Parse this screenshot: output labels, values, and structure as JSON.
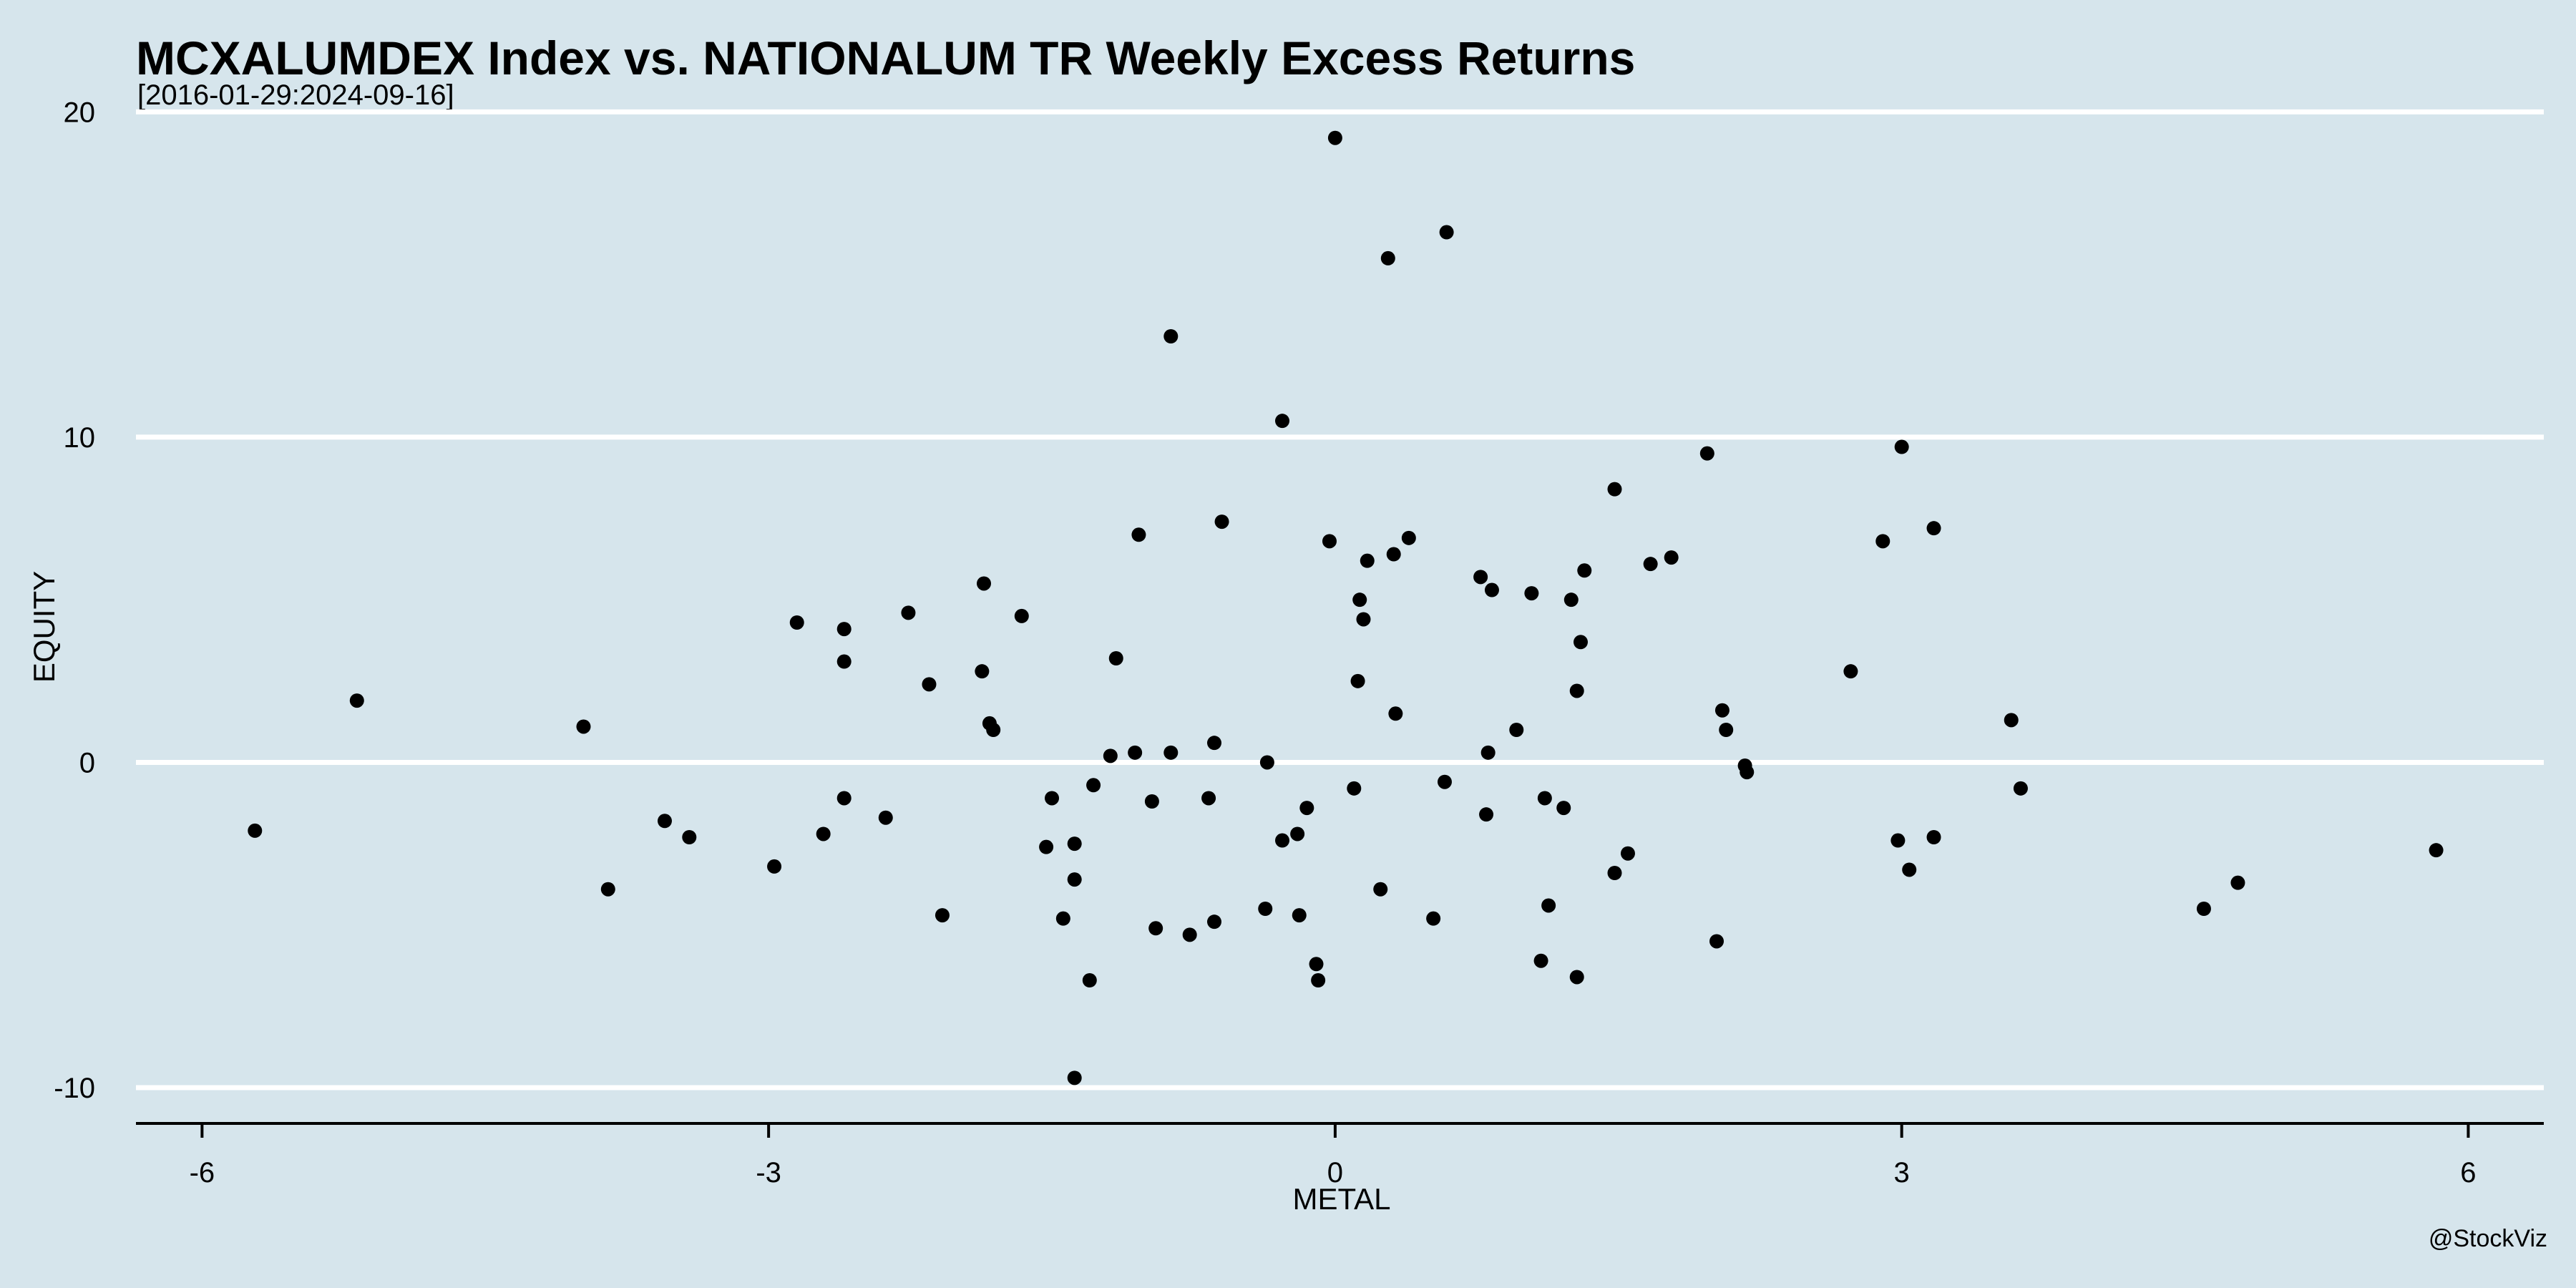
{
  "chart_data": {
    "type": "scatter",
    "title": "MCXALUMDEX Index vs. NATIONALUM TR Weekly Excess Returns",
    "subtitle": "[2016-01-29:2024-09-16]",
    "xlabel": "METAL",
    "ylabel": "EQUITY",
    "xlim": [
      -6.35,
      6.4
    ],
    "ylim": [
      -11.1,
      20.8
    ],
    "x_ticks": [
      -6,
      -3,
      0,
      3,
      6
    ],
    "x_tick_labels": [
      "-6",
      "-3",
      "0",
      "3",
      "6"
    ],
    "y_ticks": [
      -10,
      0,
      10,
      20
    ],
    "y_tick_labels": [
      "-10",
      "0",
      "10",
      "20"
    ],
    "grid": "horizontal",
    "credit": "@StockViz",
    "colors": {
      "background": "#d6e5ec",
      "gridline": "#ffffff",
      "point": "#000000",
      "axis": "#000000"
    },
    "points": [
      {
        "x": -5.72,
        "y": -2.1
      },
      {
        "x": -5.18,
        "y": 1.9
      },
      {
        "x": -3.98,
        "y": 1.1
      },
      {
        "x": -3.85,
        "y": -3.9
      },
      {
        "x": -3.55,
        "y": -1.8
      },
      {
        "x": -3.42,
        "y": -2.3
      },
      {
        "x": -2.97,
        "y": -3.2
      },
      {
        "x": -2.85,
        "y": 4.3
      },
      {
        "x": -2.71,
        "y": -2.2
      },
      {
        "x": -2.6,
        "y": 4.1
      },
      {
        "x": -2.6,
        "y": 3.1
      },
      {
        "x": -2.6,
        "y": -1.1
      },
      {
        "x": -2.38,
        "y": -1.7
      },
      {
        "x": -2.26,
        "y": 4.6
      },
      {
        "x": -2.15,
        "y": 2.4
      },
      {
        "x": -2.08,
        "y": -4.7
      },
      {
        "x": -1.86,
        "y": 5.5
      },
      {
        "x": -1.87,
        "y": 2.8
      },
      {
        "x": -1.83,
        "y": 1.2
      },
      {
        "x": -1.81,
        "y": 1.0
      },
      {
        "x": -1.66,
        "y": 4.5
      },
      {
        "x": -1.53,
        "y": -2.6
      },
      {
        "x": -1.5,
        "y": -1.1
      },
      {
        "x": -1.44,
        "y": -4.8
      },
      {
        "x": -1.38,
        "y": -2.5
      },
      {
        "x": -1.38,
        "y": -3.6
      },
      {
        "x": -1.38,
        "y": -9.7
      },
      {
        "x": -1.3,
        "y": -6.7
      },
      {
        "x": -1.28,
        "y": -0.7
      },
      {
        "x": -1.19,
        "y": 0.2
      },
      {
        "x": -1.16,
        "y": 3.2
      },
      {
        "x": -1.06,
        "y": 0.3
      },
      {
        "x": -1.04,
        "y": 7.0
      },
      {
        "x": -0.97,
        "y": -1.2
      },
      {
        "x": -0.95,
        "y": -5.1
      },
      {
        "x": -0.87,
        "y": 0.3
      },
      {
        "x": -0.87,
        "y": 13.1
      },
      {
        "x": -0.77,
        "y": -5.3
      },
      {
        "x": -0.67,
        "y": -1.1
      },
      {
        "x": -0.64,
        "y": 0.6
      },
      {
        "x": -0.64,
        "y": -4.9
      },
      {
        "x": -0.6,
        "y": 7.4
      },
      {
        "x": -0.37,
        "y": -4.5
      },
      {
        "x": -0.36,
        "y": 0.0
      },
      {
        "x": -0.28,
        "y": 10.5
      },
      {
        "x": -0.28,
        "y": -2.4
      },
      {
        "x": -0.2,
        "y": -2.2
      },
      {
        "x": -0.19,
        "y": -4.7
      },
      {
        "x": -0.15,
        "y": -1.4
      },
      {
        "x": -0.1,
        "y": -6.2
      },
      {
        "x": -0.09,
        "y": -6.7
      },
      {
        "x": -0.03,
        "y": 6.8
      },
      {
        "x": 0.0,
        "y": 19.2
      },
      {
        "x": 0.1,
        "y": -0.8
      },
      {
        "x": 0.12,
        "y": 2.5
      },
      {
        "x": 0.13,
        "y": 5.0
      },
      {
        "x": 0.15,
        "y": 4.4
      },
      {
        "x": 0.17,
        "y": 6.2
      },
      {
        "x": 0.24,
        "y": -3.9
      },
      {
        "x": 0.28,
        "y": 15.5
      },
      {
        "x": 0.31,
        "y": 6.4
      },
      {
        "x": 0.32,
        "y": 1.5
      },
      {
        "x": 0.39,
        "y": 6.9
      },
      {
        "x": 0.52,
        "y": -4.8
      },
      {
        "x": 0.59,
        "y": 16.3
      },
      {
        "x": 0.58,
        "y": -0.6
      },
      {
        "x": 0.77,
        "y": 5.7
      },
      {
        "x": 0.8,
        "y": -1.6
      },
      {
        "x": 0.81,
        "y": 0.3
      },
      {
        "x": 0.83,
        "y": 5.3
      },
      {
        "x": 0.96,
        "y": 1.0
      },
      {
        "x": 1.04,
        "y": 5.2
      },
      {
        "x": 1.09,
        "y": -6.1
      },
      {
        "x": 1.11,
        "y": -1.1
      },
      {
        "x": 1.13,
        "y": -4.4
      },
      {
        "x": 1.21,
        "y": -1.4
      },
      {
        "x": 1.25,
        "y": 5.0
      },
      {
        "x": 1.28,
        "y": 2.2
      },
      {
        "x": 1.28,
        "y": -6.6
      },
      {
        "x": 1.3,
        "y": 3.7
      },
      {
        "x": 1.32,
        "y": 5.9
      },
      {
        "x": 1.48,
        "y": 8.4
      },
      {
        "x": 1.48,
        "y": -3.4
      },
      {
        "x": 1.55,
        "y": -2.8
      },
      {
        "x": 1.67,
        "y": 6.1
      },
      {
        "x": 1.78,
        "y": 6.3
      },
      {
        "x": 1.97,
        "y": 9.5
      },
      {
        "x": 2.02,
        "y": -5.5
      },
      {
        "x": 2.05,
        "y": 1.6
      },
      {
        "x": 2.07,
        "y": 1.0
      },
      {
        "x": 2.17,
        "y": -0.1
      },
      {
        "x": 2.18,
        "y": -0.3
      },
      {
        "x": 2.73,
        "y": 2.8
      },
      {
        "x": 2.9,
        "y": 6.8
      },
      {
        "x": 2.98,
        "y": -2.4
      },
      {
        "x": 3.0,
        "y": 9.7
      },
      {
        "x": 3.04,
        "y": -3.3
      },
      {
        "x": 3.17,
        "y": 7.2
      },
      {
        "x": 3.17,
        "y": -2.3
      },
      {
        "x": 3.58,
        "y": 1.3
      },
      {
        "x": 3.63,
        "y": -0.8
      },
      {
        "x": 4.6,
        "y": -4.5
      },
      {
        "x": 4.78,
        "y": -3.7
      },
      {
        "x": 5.83,
        "y": -2.7
      }
    ]
  }
}
